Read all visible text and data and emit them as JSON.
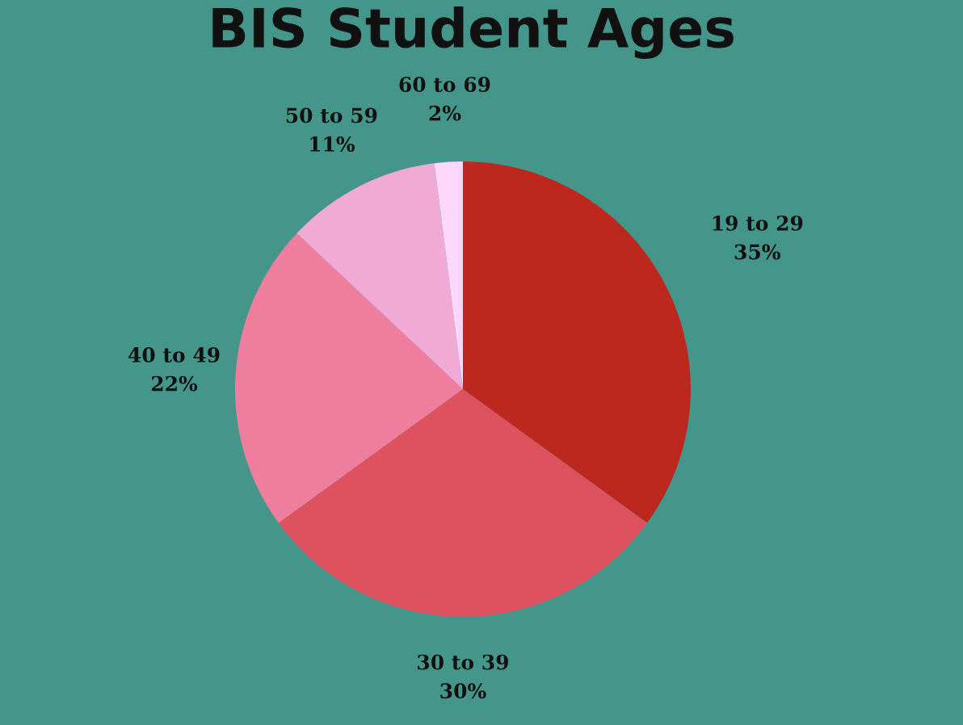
{
  "chart_data": {
    "type": "pie",
    "title": "BIS Student Ages",
    "categories": [
      "19 to 29",
      "30 to 39",
      "40 to 49",
      "50 to 59",
      "60 to 69"
    ],
    "values": [
      35,
      30,
      22,
      11,
      2
    ],
    "colors": [
      "#bc281e",
      "#de515f",
      "#ee7d9e",
      "#f1aad6",
      "#fdd8fc"
    ],
    "value_labels": [
      "35%",
      "30%",
      "22%",
      "11%",
      "2%"
    ],
    "legend": false
  }
}
